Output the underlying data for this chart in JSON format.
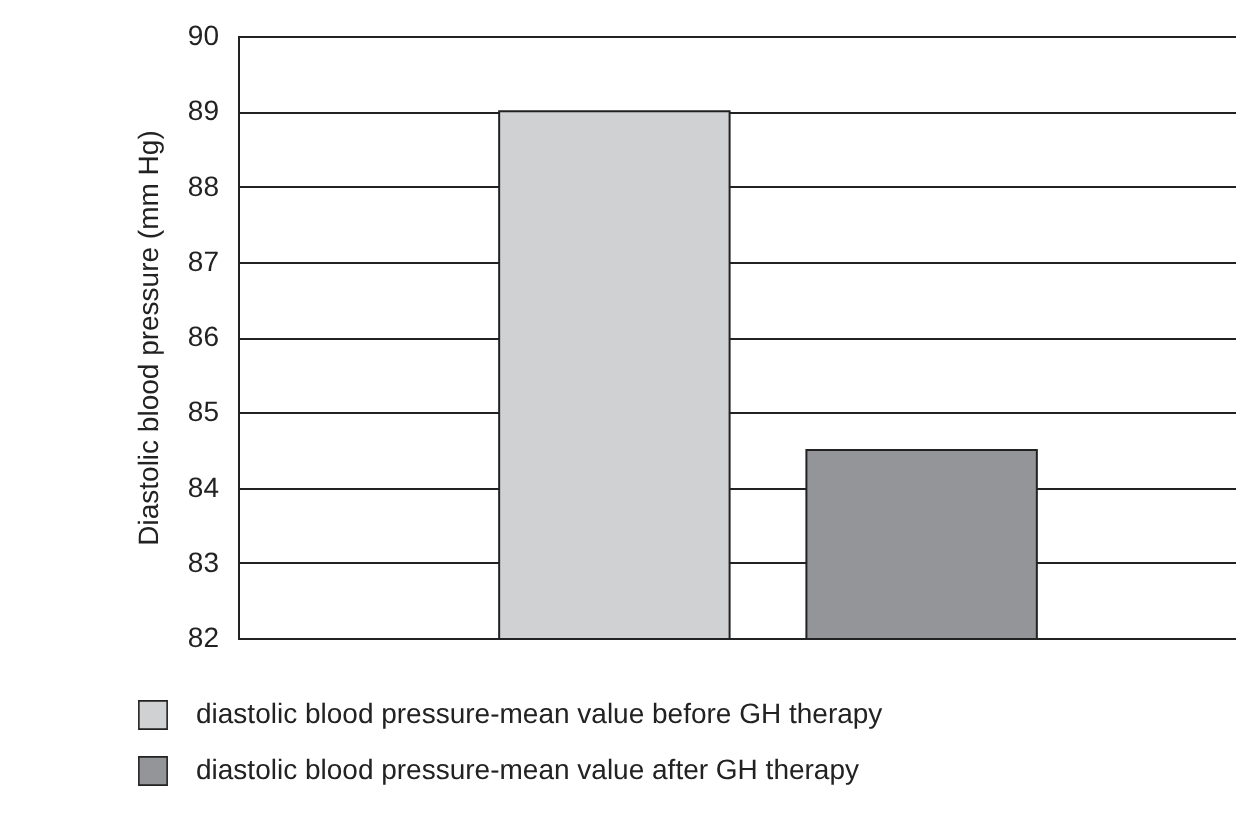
{
  "chart_data": {
    "type": "bar",
    "ylabel": "Diastolic blood pressure (mm Hg)",
    "categories": [
      null,
      null
    ],
    "series": [
      {
        "name": "diastolic blood pressure-mean value before GH therapy",
        "color": "#d0d1d3",
        "values": [
          89,
          null
        ]
      },
      {
        "name": "diastolic blood pressure-mean value after GH therapy",
        "color": "#939598",
        "values": [
          null,
          84.5
        ]
      }
    ],
    "ylim": [
      82,
      90
    ],
    "yticks": [
      82,
      83,
      84,
      85,
      86,
      87,
      88,
      89,
      90
    ],
    "grid": "y",
    "legend": "bottom left"
  }
}
